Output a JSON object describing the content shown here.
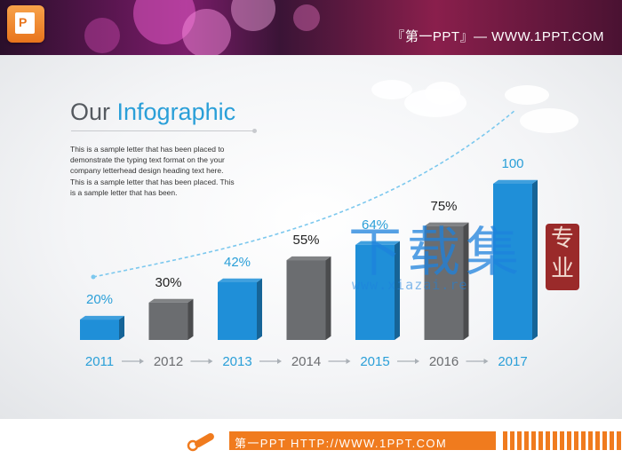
{
  "header": {
    "banner_text": "『第一PPT』— WWW.1PPT.COM",
    "logo_letter": "P"
  },
  "title": {
    "prefix": "Our ",
    "accent": "Infographic"
  },
  "body_text": "This is a sample letter that has been placed to demonstrate the typing text format on the your company letterhead design heading text here. This is a sample letter that has been placed. This is a sample letter that has been.",
  "watermark": {
    "chars": "下载集",
    "url": "www.xiazai.re",
    "seal": "专业"
  },
  "footer": {
    "text": "第一PPT HTTP://WWW.1PPT.COM"
  },
  "colors": {
    "blue": "#1f8fd8",
    "gray": "#6b6d70",
    "accent": "#2a9fd8",
    "orange": "#f07b1e"
  },
  "chart_data": {
    "type": "bar",
    "categories": [
      "2011",
      "2012",
      "2013",
      "2014",
      "2015",
      "2016",
      "2017"
    ],
    "values": [
      20,
      30,
      42,
      55,
      64,
      75,
      100
    ],
    "value_labels": [
      "20%",
      "30%",
      "42%",
      "55%",
      "64%",
      "75%",
      "100"
    ],
    "bar_colors": [
      "blue",
      "gray",
      "blue",
      "gray",
      "blue",
      "gray",
      "blue"
    ],
    "trend_line": "dashed rising curve",
    "ylim": [
      0,
      100
    ]
  }
}
